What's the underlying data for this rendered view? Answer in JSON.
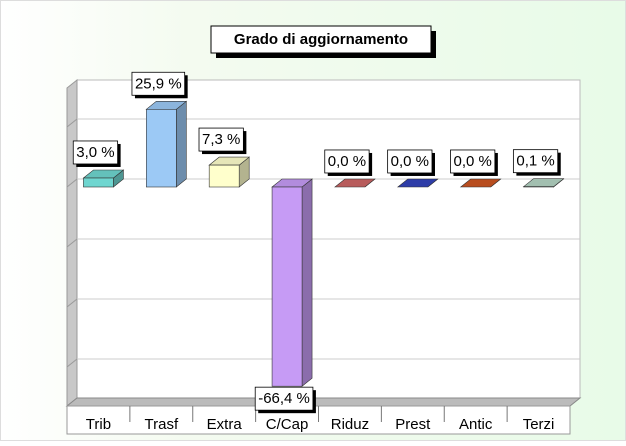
{
  "chart_data": {
    "type": "bar3d",
    "title": "Grado di aggiornamento",
    "categories": [
      "Trib",
      "Trasf",
      "Extra",
      "C/Cap",
      "Riduz",
      "Prest",
      "Antic",
      "Terzi"
    ],
    "values": [
      3.0,
      25.9,
      7.3,
      -66.4,
      0.0,
      0.0,
      0.0,
      0.1
    ],
    "value_labels": [
      "3,0 %",
      "25,9 %",
      "7,3 %",
      "-66,4 %",
      "0,0 %",
      "0,0 %",
      "0,0 %",
      "0,1 %"
    ],
    "colors": [
      "#6fd6d0",
      "#9cc9f5",
      "#ffffcc",
      "#c69bf5",
      "#cc6666",
      "#3344bb",
      "#cc5522",
      "#b4d4c4"
    ],
    "ylim": [
      -70,
      30
    ],
    "yticks": [
      -60,
      -40,
      -20,
      0,
      20
    ],
    "grid": true
  }
}
